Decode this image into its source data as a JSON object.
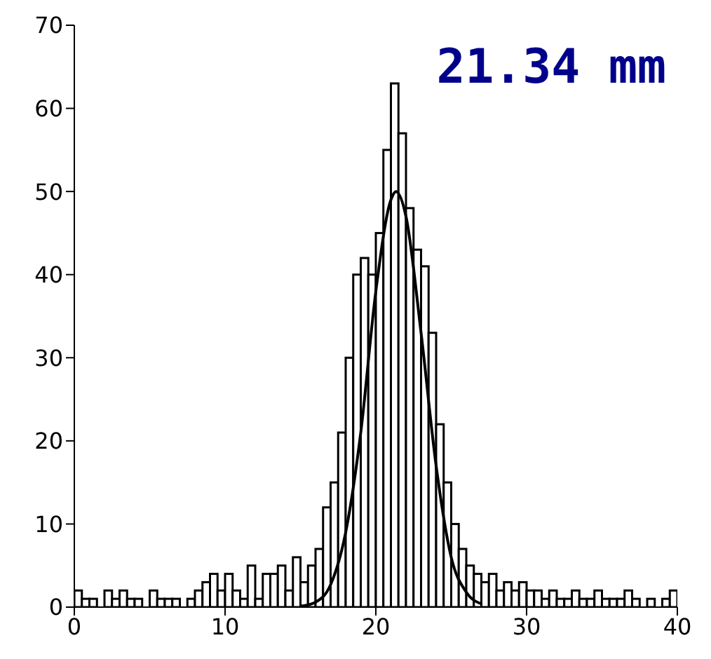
{
  "chart_data": {
    "type": "histogram",
    "bins": [
      0,
      0.5,
      1,
      1.5,
      2,
      2.5,
      3,
      3.5,
      4,
      4.5,
      5,
      5.5,
      6,
      6.5,
      7,
      7.5,
      8,
      8.5,
      9,
      9.5,
      10,
      10.5,
      11,
      11.5,
      12,
      12.5,
      13,
      13.5,
      14,
      14.5,
      15,
      15.5,
      16,
      16.5,
      17,
      17.5,
      18,
      18.5,
      19,
      19.5,
      20,
      20.5,
      21,
      21.5,
      22,
      22.5,
      23,
      23.5,
      24,
      24.5,
      25,
      25.5,
      26,
      26.5,
      27,
      27.5,
      28,
      28.5,
      29,
      29.5,
      30,
      30.5,
      31,
      31.5,
      32,
      32.5,
      33,
      33.5,
      34,
      34.5,
      35,
      35.5,
      36,
      36.5,
      37,
      37.5,
      38,
      38.5,
      39,
      39.5,
      40
    ],
    "values": [
      2,
      1,
      1,
      0,
      2,
      1,
      2,
      1,
      1,
      0,
      2,
      1,
      1,
      1,
      0,
      1,
      2,
      3,
      4,
      2,
      4,
      2,
      1,
      5,
      1,
      4,
      4,
      5,
      2,
      6,
      3,
      5,
      7,
      12,
      15,
      21,
      30,
      40,
      42,
      40,
      45,
      55,
      63,
      57,
      48,
      43,
      41,
      33,
      22,
      15,
      10,
      7,
      5,
      4,
      3,
      4,
      2,
      3,
      2,
      3,
      2,
      2,
      1,
      2,
      1,
      1,
      2,
      1,
      1,
      2,
      1,
      1,
      1,
      2,
      1,
      0,
      1,
      0,
      1,
      2
    ],
    "color": "#000000",
    "series": [
      {
        "type": "line",
        "color": "#000000",
        "x": [
          15,
          16,
          17,
          18,
          19,
          20,
          21,
          21.34,
          22,
          23,
          24,
          25,
          26,
          27
        ],
        "values": [
          0.1,
          0.6,
          2.7,
          9,
          21,
          38,
          49,
          50,
          47,
          33,
          17,
          6,
          1.8,
          0.4
        ]
      }
    ],
    "annotations": [
      "21.34 mm"
    ],
    "xlim": [
      0,
      40
    ],
    "xticks": [
      0,
      10,
      20,
      30,
      40
    ],
    "ylim": [
      0,
      70
    ],
    "yticks": [
      0,
      10,
      20,
      30,
      40,
      50,
      60,
      70
    ],
    "grid": false,
    "legend": false,
    "marker": "none"
  }
}
